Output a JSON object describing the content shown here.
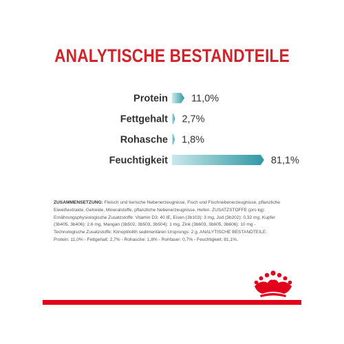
{
  "title": "ANALYTISCHE BESTANDTEILE",
  "chart_data": {
    "type": "bar",
    "orientation": "horizontal",
    "categories": [
      "Protein",
      "Fettgehalt",
      "Rohasche",
      "Feuchtigkeit"
    ],
    "values": [
      11.0,
      2.7,
      1.8,
      81.1
    ],
    "value_labels": [
      "11,0%",
      "2,7%",
      "1,8%",
      "81,1%"
    ],
    "unit": "%",
    "xlim": [
      0,
      100
    ],
    "bar_color_light": "#c9e8ec",
    "bar_color_dark": "#2f98a3",
    "grid": false,
    "legend": "none"
  },
  "composition": {
    "heading": "ZUSAMMENSETZUNG:",
    "text": " Fleisch und tierische Nebenerzeugnisse, Fisch und Fischnebenerzeugnisse, pflanzliche Eiweißextrakte, Getreide, Mineralstoffe, pflanzliche Nebenerzeugnisse, Hefen. ZUSATZSTOFFE (pro kg): Ernährungsphysiologische Zusatzstoffe: Vitamin D3: 40 IE, Eisen (3b103): 3 mg, Jod (3b202): 0,32 mg, Kupfer (3b405, 3b406): 2,6 mg, Mangan (3b502, 3b503, 3b504): 1 mg, Zink (3b603, 3b605, 3b606): 10 mg - Technologische Zusatzstoffe: Klinoptilolith sedimentären Ursprungs: 2 g. ANALYTISCHE BESTANDTEILE: Protein: 11,0% - Fettgehalt: 2,7% - Rohasche: 1,8% - Rohfaser: 0,7% - Feuchtigkeit: 81,1%."
  },
  "colors": {
    "title": "#d2232a",
    "brand_red": "#e2001a"
  },
  "logo": "royal-canin-crown-icon"
}
